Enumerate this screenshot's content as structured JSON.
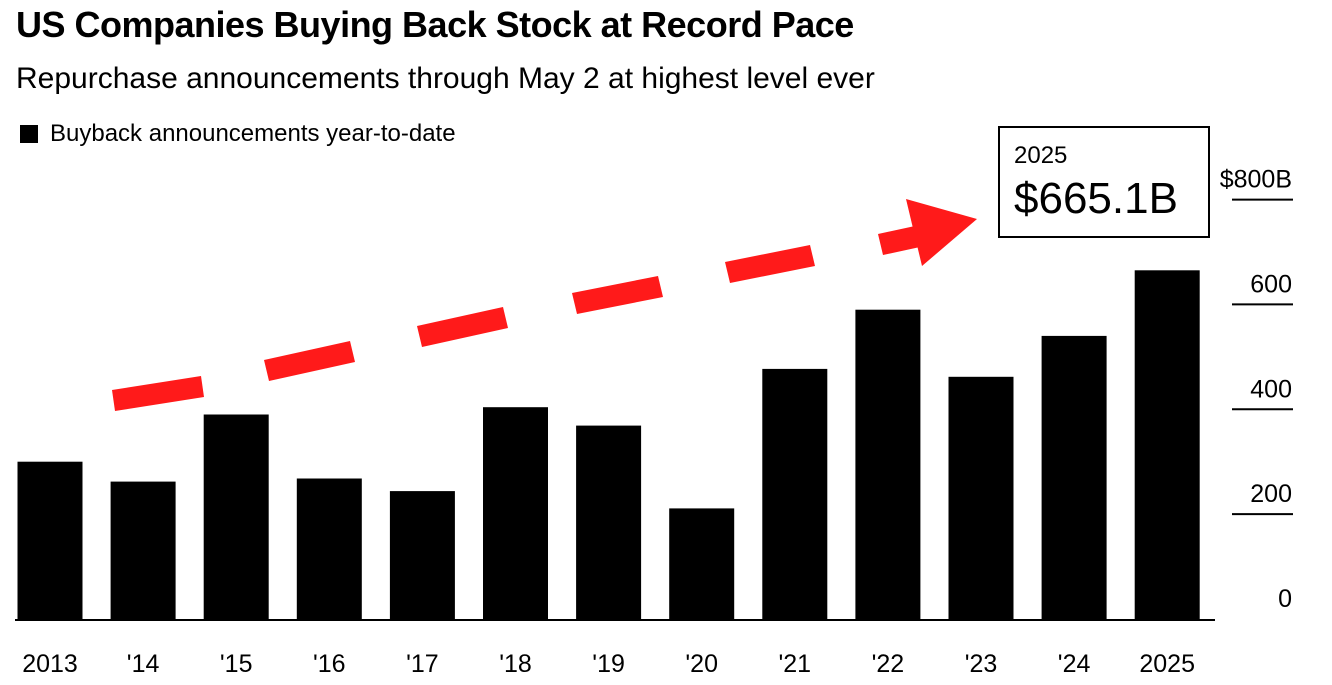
{
  "header": {
    "title": "US Companies Buying Back Stock at Record Pace",
    "subtitle": "Repurchase announcements through May 2 at highest level ever"
  },
  "legend": {
    "label": "Buyback announcements year-to-date",
    "color": "#000000"
  },
  "callout": {
    "year": "2025",
    "value": "$665.1B"
  },
  "arrow": {
    "color": "#ff1a1a"
  },
  "chart_data": {
    "type": "bar",
    "categories": [
      "2013",
      "'14",
      "'15",
      "'16",
      "'17",
      "'18",
      "'19",
      "'20",
      "'21",
      "'22",
      "'23",
      "'24",
      "'25"
    ],
    "x_tick_labels": [
      "2013",
      "'14",
      "'15",
      "'16",
      "'17",
      "'18",
      "'19",
      "'20",
      "'21",
      "'22",
      "'23",
      "'24",
      "2025"
    ],
    "series": [
      {
        "name": "Buyback announcements year-to-date",
        "values": [
          300,
          262,
          390,
          268,
          244,
          404,
          369,
          211,
          477,
          590,
          462,
          540,
          665.1
        ],
        "color": "#000000"
      }
    ],
    "ylim": [
      0,
      800
    ],
    "y_ticks": [
      0,
      200,
      400,
      600,
      800
    ],
    "y_tick_labels": [
      "0",
      "200",
      "400",
      "600",
      "$800B"
    ],
    "y_axis_position": "right",
    "grid": false,
    "legend_position": "top-left"
  }
}
